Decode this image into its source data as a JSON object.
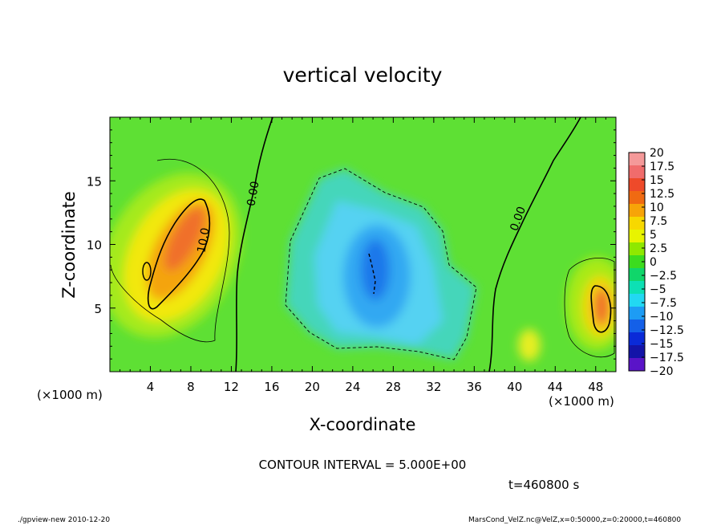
{
  "chart_data": {
    "type": "heatmap",
    "title": "vertical velocity",
    "xlabel": "X-coordinate",
    "ylabel": "Z-coordinate",
    "x_unit": "(×1000 m)",
    "x_unit_right": "(×1000 m)",
    "xlim": [
      0,
      50
    ],
    "ylim": [
      0,
      20
    ],
    "x_ticks": [
      4,
      8,
      12,
      16,
      20,
      24,
      28,
      32,
      36,
      40,
      44,
      48
    ],
    "x_tick_labels": [
      "4",
      "8",
      "12",
      "16",
      "20",
      "24",
      "28",
      "32",
      "36",
      "40",
      "44",
      "48"
    ],
    "y_ticks": [
      5,
      10,
      15
    ],
    "y_tick_labels": [
      "5",
      "10",
      "15"
    ],
    "colorbar": {
      "levels": [
        20,
        17.5,
        15,
        12.5,
        10,
        7.5,
        5,
        2.5,
        0,
        -2.5,
        -5,
        -7.5,
        -10,
        -12.5,
        -15,
        -17.5,
        -20
      ],
      "labels": [
        "20",
        "17.5",
        "15",
        "12.5",
        "10",
        "7.5",
        "5",
        "2.5",
        "0",
        "−2.5",
        "−5",
        "−7.5",
        "−10",
        "−12.5",
        "−15",
        "−17.5",
        "−20"
      ],
      "colors": [
        "#f49999",
        "#f06c6c",
        "#ee4a2a",
        "#f06a12",
        "#f7a408",
        "#f7d800",
        "#e8f400",
        "#8fe800",
        "#3cdc1e",
        "#10d66a",
        "#0de0b4",
        "#22d8f2",
        "#1d9cf4",
        "#1460e8",
        "#0a2ad8",
        "#1414a8",
        "#5a14c8"
      ]
    },
    "contour_labels": [
      "0.00",
      "10.0",
      "0.00"
    ],
    "features": [
      {
        "kind": "updraft",
        "x": 7.8,
        "z": 10.2,
        "peak": 12
      },
      {
        "kind": "updraft",
        "x": 48,
        "z": 5.4,
        "peak": 12
      },
      {
        "kind": "downdraft",
        "x": 26.5,
        "z": 8,
        "peak": -11
      }
    ],
    "contour_interval_text": "CONTOUR INTERVAL = 5.000E+00",
    "time_text": "t=460800 s"
  },
  "footer": {
    "left": "./gpview-new  2010-12-20",
    "right": "MarsCond_VelZ.nc@VelZ,x=0:50000,z=0:20000,t=460800"
  }
}
